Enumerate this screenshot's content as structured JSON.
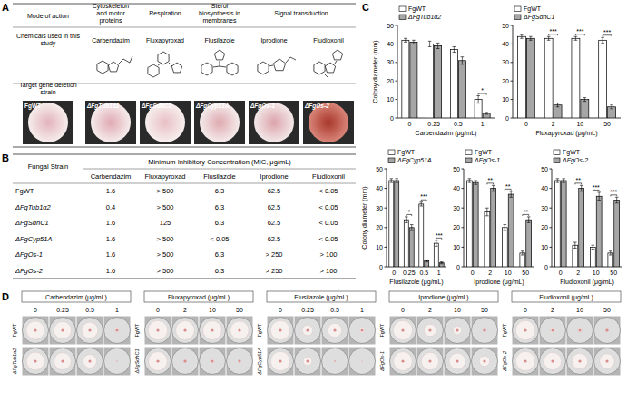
{
  "panel_labels": [
    "A",
    "B",
    "C",
    "D"
  ],
  "panel_a": {
    "header": "Mode of action",
    "chemicals_header": "Chemicals used in this study",
    "strains_header": "Target gene deletion strain",
    "modes": [
      {
        "text": "Cytoskeleton and motor proteins",
        "chemicals": [
          "Carbendazim"
        ]
      },
      {
        "text": "Respiration",
        "chemicals": [
          "Fluxapyroxad"
        ]
      },
      {
        "text": "Sterol biosynthesis in membranes",
        "chemicals": [
          "Flusilazole"
        ]
      },
      {
        "text": "Signal transduction",
        "chemicals": [
          "Iprodione",
          "Fludioxonil"
        ]
      }
    ],
    "strains": [
      "FgWT",
      "ΔFgTub1α2",
      "ΔFgSdhC1",
      "ΔFgCyp51A",
      "ΔFgOs-1",
      "ΔFgOs-2"
    ]
  },
  "panel_b": {
    "strain_header": "Fungal Strain",
    "mic_header": "Minimum Inhibitory Concentration (MIC, μg/mL)",
    "columns": [
      "Carbendazim",
      "Fluxapyroxad",
      "Flusilazole",
      "Iprodione",
      "Fludioxonil"
    ],
    "rows": [
      {
        "strain": "FgWT",
        "values": [
          1.6,
          "> 500",
          6.3,
          62.5,
          "< 0.05"
        ]
      },
      {
        "strain": "ΔFgTub1α2",
        "values": [
          0.4,
          "> 500",
          6.3,
          62.5,
          "< 0.05"
        ]
      },
      {
        "strain": "ΔFgSdhC1",
        "values": [
          1.6,
          125,
          6.3,
          62.5,
          "< 0.05"
        ]
      },
      {
        "strain": "ΔFgCyp51A",
        "values": [
          1.6,
          "> 500",
          "< 0.05",
          62.5,
          "< 0.05"
        ]
      },
      {
        "strain": "ΔFgOs-1",
        "values": [
          1.6,
          "> 500",
          6.3,
          "> 250",
          "> 100"
        ]
      },
      {
        "strain": "ΔFgOs-2",
        "values": [
          1.6,
          "> 500",
          6.3,
          "> 250",
          "> 100"
        ]
      }
    ]
  },
  "chart_data": [
    {
      "type": "bar",
      "x_label": "Carbendazim (μg/mL)",
      "y_label": "Colony diameter (mm)",
      "categories": [
        "0",
        "0.25",
        "0.5",
        "1"
      ],
      "series": [
        {
          "name": "FgWT",
          "color": "#ffffff",
          "values": [
            42,
            40,
            37,
            10
          ],
          "errors": [
            1,
            1.5,
            1.5,
            2
          ]
        },
        {
          "name": "ΔFgTub1α2",
          "color": "#a6a6a6",
          "values": [
            41,
            39,
            31,
            2.5
          ],
          "errors": [
            1,
            1.5,
            2,
            0.5
          ]
        }
      ],
      "ylim": [
        0,
        50
      ],
      "yticks": [
        0,
        10,
        20,
        30,
        40,
        50
      ],
      "significance": [
        null,
        null,
        null,
        "*"
      ],
      "legend": "top-left"
    },
    {
      "type": "bar",
      "x_label": "Fluxapyroxad (μg/mL)",
      "categories": [
        "0",
        "2",
        "10",
        "50"
      ],
      "series": [
        {
          "name": "FgWT",
          "color": "#ffffff",
          "values": [
            44,
            43,
            43,
            42
          ],
          "errors": [
            1,
            1,
            1,
            1.5
          ]
        },
        {
          "name": "ΔFgSdhC1",
          "color": "#a6a6a6",
          "values": [
            43,
            7,
            10,
            6
          ],
          "errors": [
            1,
            1,
            1,
            1
          ]
        }
      ],
      "ylim": [
        0,
        50
      ],
      "yticks": [
        0,
        10,
        20,
        30,
        40,
        50
      ],
      "significance": [
        null,
        "***",
        "***",
        "***"
      ],
      "legend": "top-left"
    },
    {
      "type": "bar",
      "x_label": "Flusilazole (μg/mL)",
      "y_label": "Colony diameter (mm)",
      "categories": [
        "0",
        "0.25",
        "0.5",
        "1"
      ],
      "series": [
        {
          "name": "FgWT",
          "color": "#ffffff",
          "values": [
            44,
            24,
            32,
            12
          ],
          "errors": [
            1,
            1.5,
            1,
            1.5
          ]
        },
        {
          "name": "ΔFgCyp51A",
          "color": "#a6a6a6",
          "values": [
            44,
            20,
            3,
            2
          ],
          "errors": [
            1,
            1.5,
            0.5,
            0.5
          ]
        }
      ],
      "ylim": [
        0,
        50
      ],
      "yticks": [
        0,
        10,
        20,
        30,
        40,
        50
      ],
      "significance": [
        null,
        "*",
        "***",
        "***"
      ],
      "legend": "top-left"
    },
    {
      "type": "bar",
      "x_label": "Iprodione (μg/mL)",
      "categories": [
        "0",
        "2",
        "10",
        "50"
      ],
      "series": [
        {
          "name": "FgWT",
          "color": "#ffffff",
          "values": [
            44,
            28,
            20,
            7
          ],
          "errors": [
            1,
            2,
            1.5,
            1
          ]
        },
        {
          "name": "ΔFgOs-1",
          "color": "#a6a6a6",
          "values": [
            43,
            40,
            37,
            24
          ],
          "errors": [
            1,
            1.5,
            1.5,
            1.5
          ]
        }
      ],
      "ylim": [
        0,
        50
      ],
      "yticks": [
        0,
        10,
        20,
        30,
        40,
        50
      ],
      "significance": [
        null,
        "**",
        "**",
        "**"
      ],
      "legend": "top-left"
    },
    {
      "type": "bar",
      "x_label": "Fludioxonil (μg/mL)",
      "categories": [
        "0",
        "2",
        "10",
        "50"
      ],
      "series": [
        {
          "name": "FgWT",
          "color": "#ffffff",
          "values": [
            44,
            11,
            10,
            7
          ],
          "errors": [
            1,
            1.5,
            1,
            1
          ]
        },
        {
          "name": "ΔFgOs-2",
          "color": "#a6a6a6",
          "values": [
            44,
            40,
            36,
            34
          ],
          "errors": [
            1,
            1.5,
            2,
            1.5
          ]
        }
      ],
      "ylim": [
        0,
        50
      ],
      "yticks": [
        0,
        10,
        20,
        30,
        40,
        50
      ],
      "significance": [
        null,
        "**",
        "***",
        "***"
      ],
      "legend": "top-left"
    }
  ]
}
